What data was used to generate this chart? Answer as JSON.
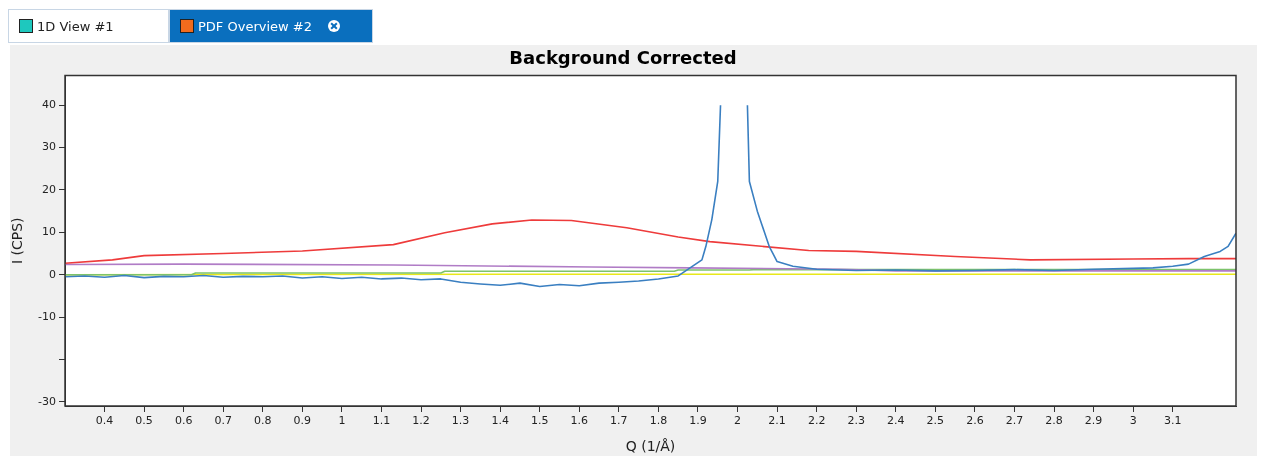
{
  "chart_data": {
    "type": "line",
    "title": "Background Corrected",
    "xlabel": "Q (1/Å)",
    "ylabel": "I (CPS)",
    "annotations": [
      "1D View #1",
      "PDF Overview #2"
    ],
    "xlim": [
      0.3,
      3.26
    ],
    "ylim": [
      -31,
      47
    ],
    "xticks": [
      0.4,
      0.5,
      0.6,
      0.7,
      0.8,
      0.9,
      1,
      1.1,
      1.2,
      1.3,
      1.4,
      1.5,
      1.6,
      1.7,
      1.8,
      1.9,
      2,
      2.1,
      2.2,
      2.3,
      2.4,
      2.5,
      2.6,
      2.7,
      2.8,
      2.9,
      3,
      3.1
    ],
    "yticks": [
      -30,
      {
        "value": -20,
        "label": null
      },
      -10,
      0,
      10,
      20,
      30,
      40
    ],
    "grid": false,
    "legend": false,
    "marker": "none",
    "line_style": "solid",
    "series": [
      {
        "color": "#3a7fc1",
        "x": [
          0.3,
          0.35,
          0.4,
          0.45,
          0.5,
          0.55,
          0.6,
          0.65,
          0.7,
          0.75,
          0.8,
          0.85,
          0.9,
          0.95,
          1.0,
          1.05,
          1.1,
          1.15,
          1.2,
          1.25,
          1.3,
          1.35,
          1.4,
          1.45,
          1.5,
          1.55,
          1.6,
          1.65,
          1.7,
          1.75,
          1.8,
          1.85,
          1.88,
          1.91,
          1.92,
          1.935,
          1.95,
          1.957,
          2.0,
          2.025,
          2.03,
          2.05,
          2.08,
          2.1,
          2.14,
          2.2,
          2.3,
          2.4,
          2.5,
          2.6,
          2.7,
          2.8,
          2.9,
          3.0,
          3.05,
          3.1,
          3.14,
          3.18,
          3.22,
          3.24,
          3.26
        ],
        "values": [
          -0.5,
          -0.3,
          -0.6,
          -0.2,
          -0.7,
          -0.4,
          -0.5,
          -0.2,
          -0.6,
          -0.4,
          -0.5,
          -0.3,
          -0.8,
          -0.5,
          -0.9,
          -0.6,
          -1.0,
          -0.8,
          -1.2,
          -1.0,
          -1.8,
          -2.2,
          -2.5,
          -2.0,
          -2.8,
          -2.3,
          -2.6,
          -2.0,
          -1.8,
          -1.5,
          -1.0,
          -0.3,
          1.6,
          3.5,
          6.7,
          13,
          22,
          40,
          null,
          40,
          22,
          15,
          6.7,
          3.1,
          2.0,
          1.3,
          1.0,
          1.1,
          0.9,
          1.0,
          1.2,
          1.0,
          1.3,
          1.5,
          1.6,
          2.0,
          2.5,
          4.3,
          5.5,
          6.7,
          9.8
        ]
      },
      {
        "color": "#ee3b3b",
        "x": [
          0.3,
          0.42,
          0.5,
          0.7,
          0.9,
          1.13,
          1.26,
          1.38,
          1.48,
          1.58,
          1.72,
          1.85,
          1.93,
          2.06,
          2.18,
          2.3,
          2.55,
          2.74,
          3.0,
          3.14,
          3.26
        ],
        "values": [
          2.7,
          3.5,
          4.5,
          5.0,
          5.6,
          7.1,
          9.9,
          12,
          12.9,
          12.8,
          11.1,
          8.9,
          7.8,
          6.7,
          5.7,
          5.5,
          4.3,
          3.5,
          3.7,
          3.8,
          3.8
        ]
      },
      {
        "color": "#b07cc6",
        "x": [
          0.3,
          0.6,
          1.13,
          1.63,
          1.88,
          2.26,
          2.4,
          3.26
        ],
        "values": [
          2.4,
          2.5,
          2.3,
          1.8,
          1.6,
          1.3,
          0.9,
          0.9
        ]
      },
      {
        "color": "#7dc36b",
        "x": [
          0.3,
          0.62,
          0.63,
          1.25,
          1.26,
          1.84,
          1.85,
          2.03,
          2.04,
          3.26
        ],
        "values": [
          0,
          0,
          0.4,
          0.4,
          0.8,
          0.8,
          1.1,
          1.1,
          1.2,
          1.2
        ]
      },
      {
        "color": "#e8e81a",
        "x": [
          0.3,
          1.5,
          3.26
        ],
        "values": [
          0,
          0.1,
          0.1
        ]
      }
    ]
  }
}
